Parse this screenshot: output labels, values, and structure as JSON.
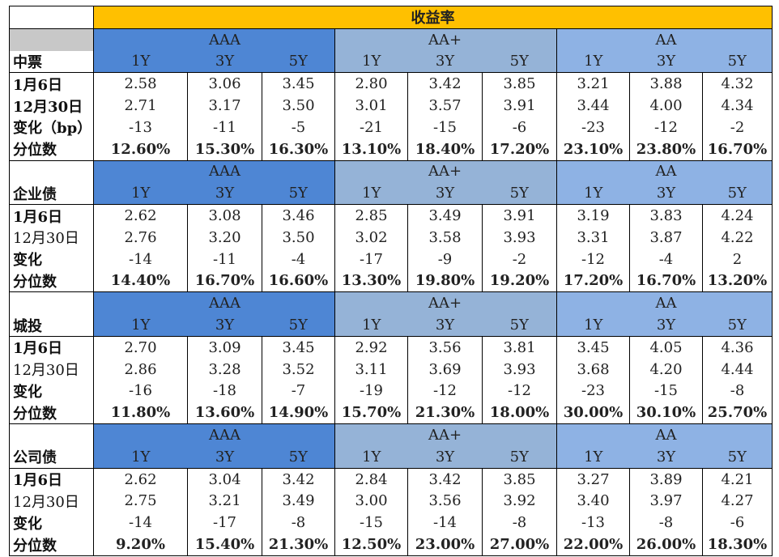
{
  "title": "收益率",
  "ratings": [
    "AAA",
    "AA+",
    "AA"
  ],
  "tenors": [
    "1Y",
    "3Y",
    "5Y"
  ],
  "sections": [
    {
      "name": "中票",
      "rows": [
        {
          "label": "1月6日",
          "bold": true,
          "values": [
            "2.58",
            "3.06",
            "3.45",
            "2.80",
            "3.42",
            "3.85",
            "3.21",
            "3.88",
            "4.32"
          ]
        },
        {
          "label": "12月30日",
          "bold": true,
          "values": [
            "2.71",
            "3.17",
            "3.50",
            "3.01",
            "3.57",
            "3.91",
            "3.44",
            "4.00",
            "4.34"
          ]
        },
        {
          "label": "变化（bp）",
          "bold": true,
          "values": [
            "-13",
            "-11",
            "-5",
            "-21",
            "-15",
            "-6",
            "-23",
            "-12",
            "-2"
          ]
        },
        {
          "label": "分位数",
          "bold": true,
          "values": [
            "12.60%",
            "15.30%",
            "16.30%",
            "13.10%",
            "18.40%",
            "17.20%",
            "23.10%",
            "23.80%",
            "16.70%"
          ]
        }
      ]
    },
    {
      "name": "企业债",
      "rows": [
        {
          "label": "1月6日",
          "bold": true,
          "values": [
            "2.62",
            "3.08",
            "3.46",
            "2.85",
            "3.49",
            "3.91",
            "3.19",
            "3.83",
            "4.24"
          ]
        },
        {
          "label": "12月30日",
          "bold": false,
          "values": [
            "2.76",
            "3.20",
            "3.50",
            "3.02",
            "3.58",
            "3.93",
            "3.31",
            "3.87",
            "4.22"
          ]
        },
        {
          "label": "变化",
          "bold": true,
          "values": [
            "-14",
            "-11",
            "-4",
            "-17",
            "-9",
            "-2",
            "-12",
            "-4",
            "2"
          ]
        },
        {
          "label": "分位数",
          "bold": true,
          "values": [
            "14.40%",
            "16.70%",
            "16.60%",
            "13.30%",
            "19.80%",
            "19.20%",
            "17.20%",
            "16.70%",
            "13.20%"
          ]
        }
      ]
    },
    {
      "name": "城投",
      "rows": [
        {
          "label": "1月6日",
          "bold": true,
          "values": [
            "2.70",
            "3.09",
            "3.45",
            "2.92",
            "3.56",
            "3.81",
            "3.45",
            "4.05",
            "4.36"
          ]
        },
        {
          "label": "12月30日",
          "bold": false,
          "values": [
            "2.86",
            "3.28",
            "3.52",
            "3.11",
            "3.69",
            "3.93",
            "3.68",
            "4.20",
            "4.44"
          ]
        },
        {
          "label": "变化",
          "bold": true,
          "values": [
            "-16",
            "-18",
            "-7",
            "-19",
            "-12",
            "-12",
            "-23",
            "-15",
            "-8"
          ]
        },
        {
          "label": "分位数",
          "bold": true,
          "values": [
            "11.80%",
            "13.60%",
            "14.90%",
            "15.70%",
            "21.30%",
            "18.00%",
            "30.00%",
            "30.10%",
            "25.70%"
          ]
        }
      ]
    },
    {
      "name": "公司债",
      "rows": [
        {
          "label": "1月6日",
          "bold": true,
          "values": [
            "2.62",
            "3.04",
            "3.42",
            "2.84",
            "3.42",
            "3.85",
            "3.27",
            "3.89",
            "4.21"
          ]
        },
        {
          "label": "12月30日",
          "bold": false,
          "values": [
            "2.75",
            "3.21",
            "3.49",
            "3.00",
            "3.56",
            "3.92",
            "3.40",
            "3.97",
            "4.27"
          ]
        },
        {
          "label": "变化",
          "bold": true,
          "values": [
            "-14",
            "-17",
            "-8",
            "-15",
            "-14",
            "-8",
            "-13",
            "-8",
            "-6"
          ]
        },
        {
          "label": "分位数",
          "bold": true,
          "values": [
            "9.20%",
            "15.40%",
            "21.30%",
            "12.50%",
            "23.00%",
            "27.00%",
            "22.00%",
            "26.00%",
            "18.30%"
          ]
        }
      ]
    }
  ]
}
